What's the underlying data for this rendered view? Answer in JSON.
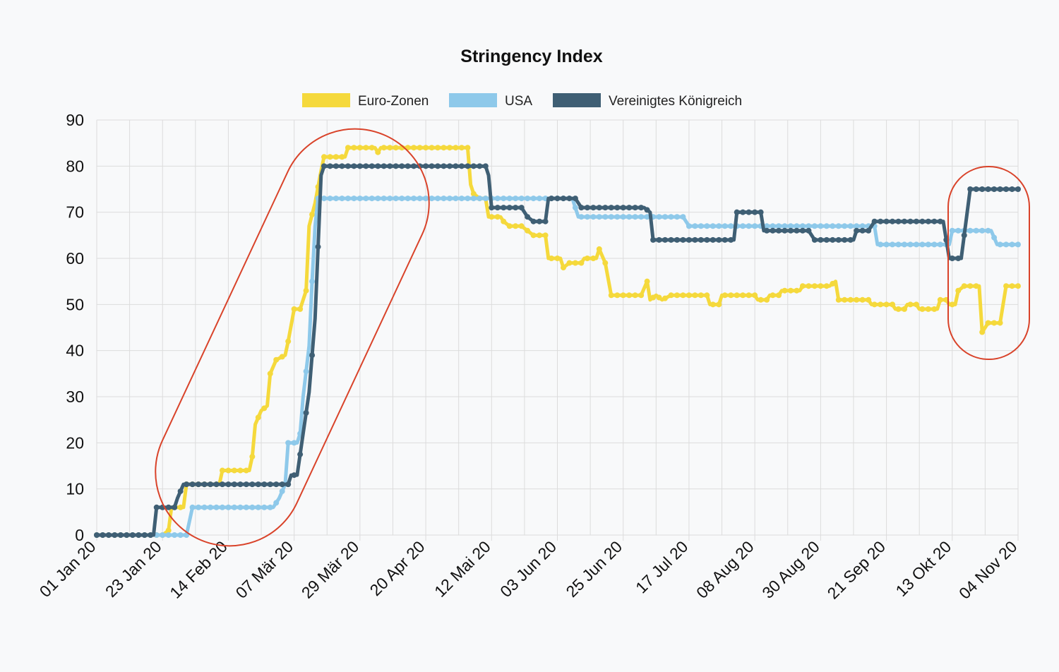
{
  "chart_data": {
    "type": "line",
    "title": "Stringency Index",
    "xlabel": "",
    "ylabel": "",
    "ylim": [
      0,
      90
    ],
    "yticks": [
      0,
      10,
      20,
      30,
      40,
      50,
      60,
      70,
      80,
      90
    ],
    "xlim": [
      "2020-01-01",
      "2020-11-04"
    ],
    "xticks": [
      {
        "date": "2020-01-01",
        "label": "01 Jan 20"
      },
      {
        "date": "2020-01-23",
        "label": "23 Jan 20"
      },
      {
        "date": "2020-02-14",
        "label": "14 Feb 20"
      },
      {
        "date": "2020-03-07",
        "label": "07 Mär 20"
      },
      {
        "date": "2020-03-29",
        "label": "29 Mär 20"
      },
      {
        "date": "2020-04-20",
        "label": "20 Apr 20"
      },
      {
        "date": "2020-05-12",
        "label": "12 Mai 20"
      },
      {
        "date": "2020-06-03",
        "label": "03 Jun 20"
      },
      {
        "date": "2020-06-25",
        "label": "25 Jun 20"
      },
      {
        "date": "2020-07-17",
        "label": "17 Jul 20"
      },
      {
        "date": "2020-08-08",
        "label": "08 Aug 20"
      },
      {
        "date": "2020-08-30",
        "label": "30 Aug 20"
      },
      {
        "date": "2020-09-21",
        "label": "21 Sep 20"
      },
      {
        "date": "2020-10-13",
        "label": "13 Okt 20"
      },
      {
        "date": "2020-11-04",
        "label": "04 Nov 20"
      }
    ],
    "grid": true,
    "legend_position": "top-center",
    "series": [
      {
        "name": "Euro-Zonen",
        "color": "#f5d93c",
        "points": [
          [
            "2020-01-01",
            0
          ],
          [
            "2020-01-23",
            0
          ],
          [
            "2020-01-25",
            1
          ],
          [
            "2020-01-26",
            6
          ],
          [
            "2020-01-30",
            6
          ],
          [
            "2020-01-31",
            11
          ],
          [
            "2020-02-11",
            11
          ],
          [
            "2020-02-12",
            14
          ],
          [
            "2020-02-21",
            14
          ],
          [
            "2020-02-22",
            17
          ],
          [
            "2020-02-23",
            24
          ],
          [
            "2020-02-25",
            27
          ],
          [
            "2020-02-27",
            28
          ],
          [
            "2020-02-28",
            35
          ],
          [
            "2020-03-01",
            38
          ],
          [
            "2020-03-04",
            39
          ],
          [
            "2020-03-05",
            42
          ],
          [
            "2020-03-07",
            49
          ],
          [
            "2020-03-09",
            49
          ],
          [
            "2020-03-11",
            53
          ],
          [
            "2020-03-12",
            67
          ],
          [
            "2020-03-14",
            72
          ],
          [
            "2020-03-16",
            79
          ],
          [
            "2020-03-17",
            82
          ],
          [
            "2020-03-24",
            82
          ],
          [
            "2020-03-25",
            84
          ],
          [
            "2020-04-03",
            84
          ],
          [
            "2020-04-04",
            83
          ],
          [
            "2020-04-05",
            84
          ],
          [
            "2020-05-04",
            84
          ],
          [
            "2020-05-05",
            76
          ],
          [
            "2020-05-06",
            74
          ],
          [
            "2020-05-08",
            73
          ],
          [
            "2020-05-10",
            73
          ],
          [
            "2020-05-11",
            69
          ],
          [
            "2020-05-15",
            69
          ],
          [
            "2020-05-16",
            68
          ],
          [
            "2020-05-18",
            67
          ],
          [
            "2020-05-22",
            67
          ],
          [
            "2020-05-24",
            66
          ],
          [
            "2020-05-26",
            65
          ],
          [
            "2020-05-30",
            65
          ],
          [
            "2020-05-31",
            60
          ],
          [
            "2020-06-04",
            60
          ],
          [
            "2020-06-05",
            58
          ],
          [
            "2020-06-07",
            59
          ],
          [
            "2020-06-11",
            59
          ],
          [
            "2020-06-12",
            60
          ],
          [
            "2020-06-16",
            60
          ],
          [
            "2020-06-17",
            62
          ],
          [
            "2020-06-19",
            59
          ],
          [
            "2020-06-21",
            52
          ],
          [
            "2020-07-01",
            52
          ],
          [
            "2020-07-03",
            55
          ],
          [
            "2020-07-04",
            51
          ],
          [
            "2020-07-06",
            52
          ],
          [
            "2020-07-08",
            51
          ],
          [
            "2020-07-11",
            52
          ],
          [
            "2020-07-23",
            52
          ],
          [
            "2020-07-24",
            50
          ],
          [
            "2020-07-27",
            50
          ],
          [
            "2020-07-28",
            52
          ],
          [
            "2020-08-08",
            52
          ],
          [
            "2020-08-09",
            51
          ],
          [
            "2020-08-12",
            51
          ],
          [
            "2020-08-13",
            52
          ],
          [
            "2020-08-16",
            52
          ],
          [
            "2020-08-17",
            53
          ],
          [
            "2020-08-23",
            53
          ],
          [
            "2020-08-24",
            54
          ],
          [
            "2020-09-02",
            54
          ],
          [
            "2020-09-04",
            55
          ],
          [
            "2020-09-05",
            51
          ],
          [
            "2020-09-15",
            51
          ],
          [
            "2020-09-16",
            50
          ],
          [
            "2020-09-23",
            50
          ],
          [
            "2020-09-24",
            49
          ],
          [
            "2020-09-27",
            49
          ],
          [
            "2020-09-28",
            50
          ],
          [
            "2020-10-01",
            50
          ],
          [
            "2020-10-02",
            49
          ],
          [
            "2020-10-08",
            49
          ],
          [
            "2020-10-09",
            51
          ],
          [
            "2020-10-11",
            51
          ],
          [
            "2020-10-12",
            50
          ],
          [
            "2020-10-14",
            50
          ],
          [
            "2020-10-15",
            53
          ],
          [
            "2020-10-17",
            54
          ],
          [
            "2020-10-22",
            54
          ],
          [
            "2020-10-23",
            44
          ],
          [
            "2020-10-25",
            46
          ],
          [
            "2020-10-29",
            46
          ],
          [
            "2020-10-31",
            54
          ],
          [
            "2020-11-04",
            54
          ]
        ]
      },
      {
        "name": "USA",
        "color": "#8ec9ea",
        "points": [
          [
            "2020-01-01",
            0
          ],
          [
            "2020-01-31",
            0
          ],
          [
            "2020-02-02",
            6
          ],
          [
            "2020-02-29",
            6
          ],
          [
            "2020-03-02",
            8
          ],
          [
            "2020-03-04",
            11
          ],
          [
            "2020-03-05",
            20
          ],
          [
            "2020-03-08",
            20
          ],
          [
            "2020-03-09",
            22
          ],
          [
            "2020-03-10",
            30
          ],
          [
            "2020-03-12",
            41
          ],
          [
            "2020-03-13",
            55
          ],
          [
            "2020-03-14",
            67
          ],
          [
            "2020-03-15",
            73
          ],
          [
            "2020-06-06",
            73
          ],
          [
            "2020-06-08",
            73
          ],
          [
            "2020-06-10",
            69
          ],
          [
            "2020-07-15",
            69
          ],
          [
            "2020-07-17",
            67
          ],
          [
            "2020-09-17",
            67
          ],
          [
            "2020-09-18",
            63
          ],
          [
            "2020-10-12",
            63
          ],
          [
            "2020-10-13",
            66
          ],
          [
            "2020-10-26",
            66
          ],
          [
            "2020-10-28",
            63
          ],
          [
            "2020-11-04",
            63
          ]
        ]
      },
      {
        "name": "Vereinigtes Königreich",
        "color": "#3f5f74",
        "points": [
          [
            "2020-01-01",
            0
          ],
          [
            "2020-01-20",
            0
          ],
          [
            "2020-01-21",
            6
          ],
          [
            "2020-01-27",
            6
          ],
          [
            "2020-01-28",
            8
          ],
          [
            "2020-01-30",
            11
          ],
          [
            "2020-03-05",
            11
          ],
          [
            "2020-03-06",
            13
          ],
          [
            "2020-03-08",
            13
          ],
          [
            "2020-03-10",
            22
          ],
          [
            "2020-03-12",
            31
          ],
          [
            "2020-03-14",
            47
          ],
          [
            "2020-03-16",
            78
          ],
          [
            "2020-03-17",
            80
          ],
          [
            "2020-05-10",
            80
          ],
          [
            "2020-05-11",
            78
          ],
          [
            "2020-05-12",
            71
          ],
          [
            "2020-05-22",
            71
          ],
          [
            "2020-05-24",
            69
          ],
          [
            "2020-05-26",
            68
          ],
          [
            "2020-05-30",
            68
          ],
          [
            "2020-05-31",
            73
          ],
          [
            "2020-06-09",
            73
          ],
          [
            "2020-06-11",
            71
          ],
          [
            "2020-07-02",
            71
          ],
          [
            "2020-07-04",
            70
          ],
          [
            "2020-07-05",
            64
          ],
          [
            "2020-08-01",
            64
          ],
          [
            "2020-08-02",
            70
          ],
          [
            "2020-08-10",
            70
          ],
          [
            "2020-08-11",
            66
          ],
          [
            "2020-08-26",
            66
          ],
          [
            "2020-08-28",
            64
          ],
          [
            "2020-09-08",
            64
          ],
          [
            "2020-09-10",
            64
          ],
          [
            "2020-09-11",
            66
          ],
          [
            "2020-09-15",
            66
          ],
          [
            "2020-09-17",
            68
          ],
          [
            "2020-10-10",
            68
          ],
          [
            "2020-10-12",
            60
          ],
          [
            "2020-10-16",
            60
          ],
          [
            "2020-10-19",
            75
          ],
          [
            "2020-11-04",
            75
          ]
        ]
      }
    ]
  }
}
